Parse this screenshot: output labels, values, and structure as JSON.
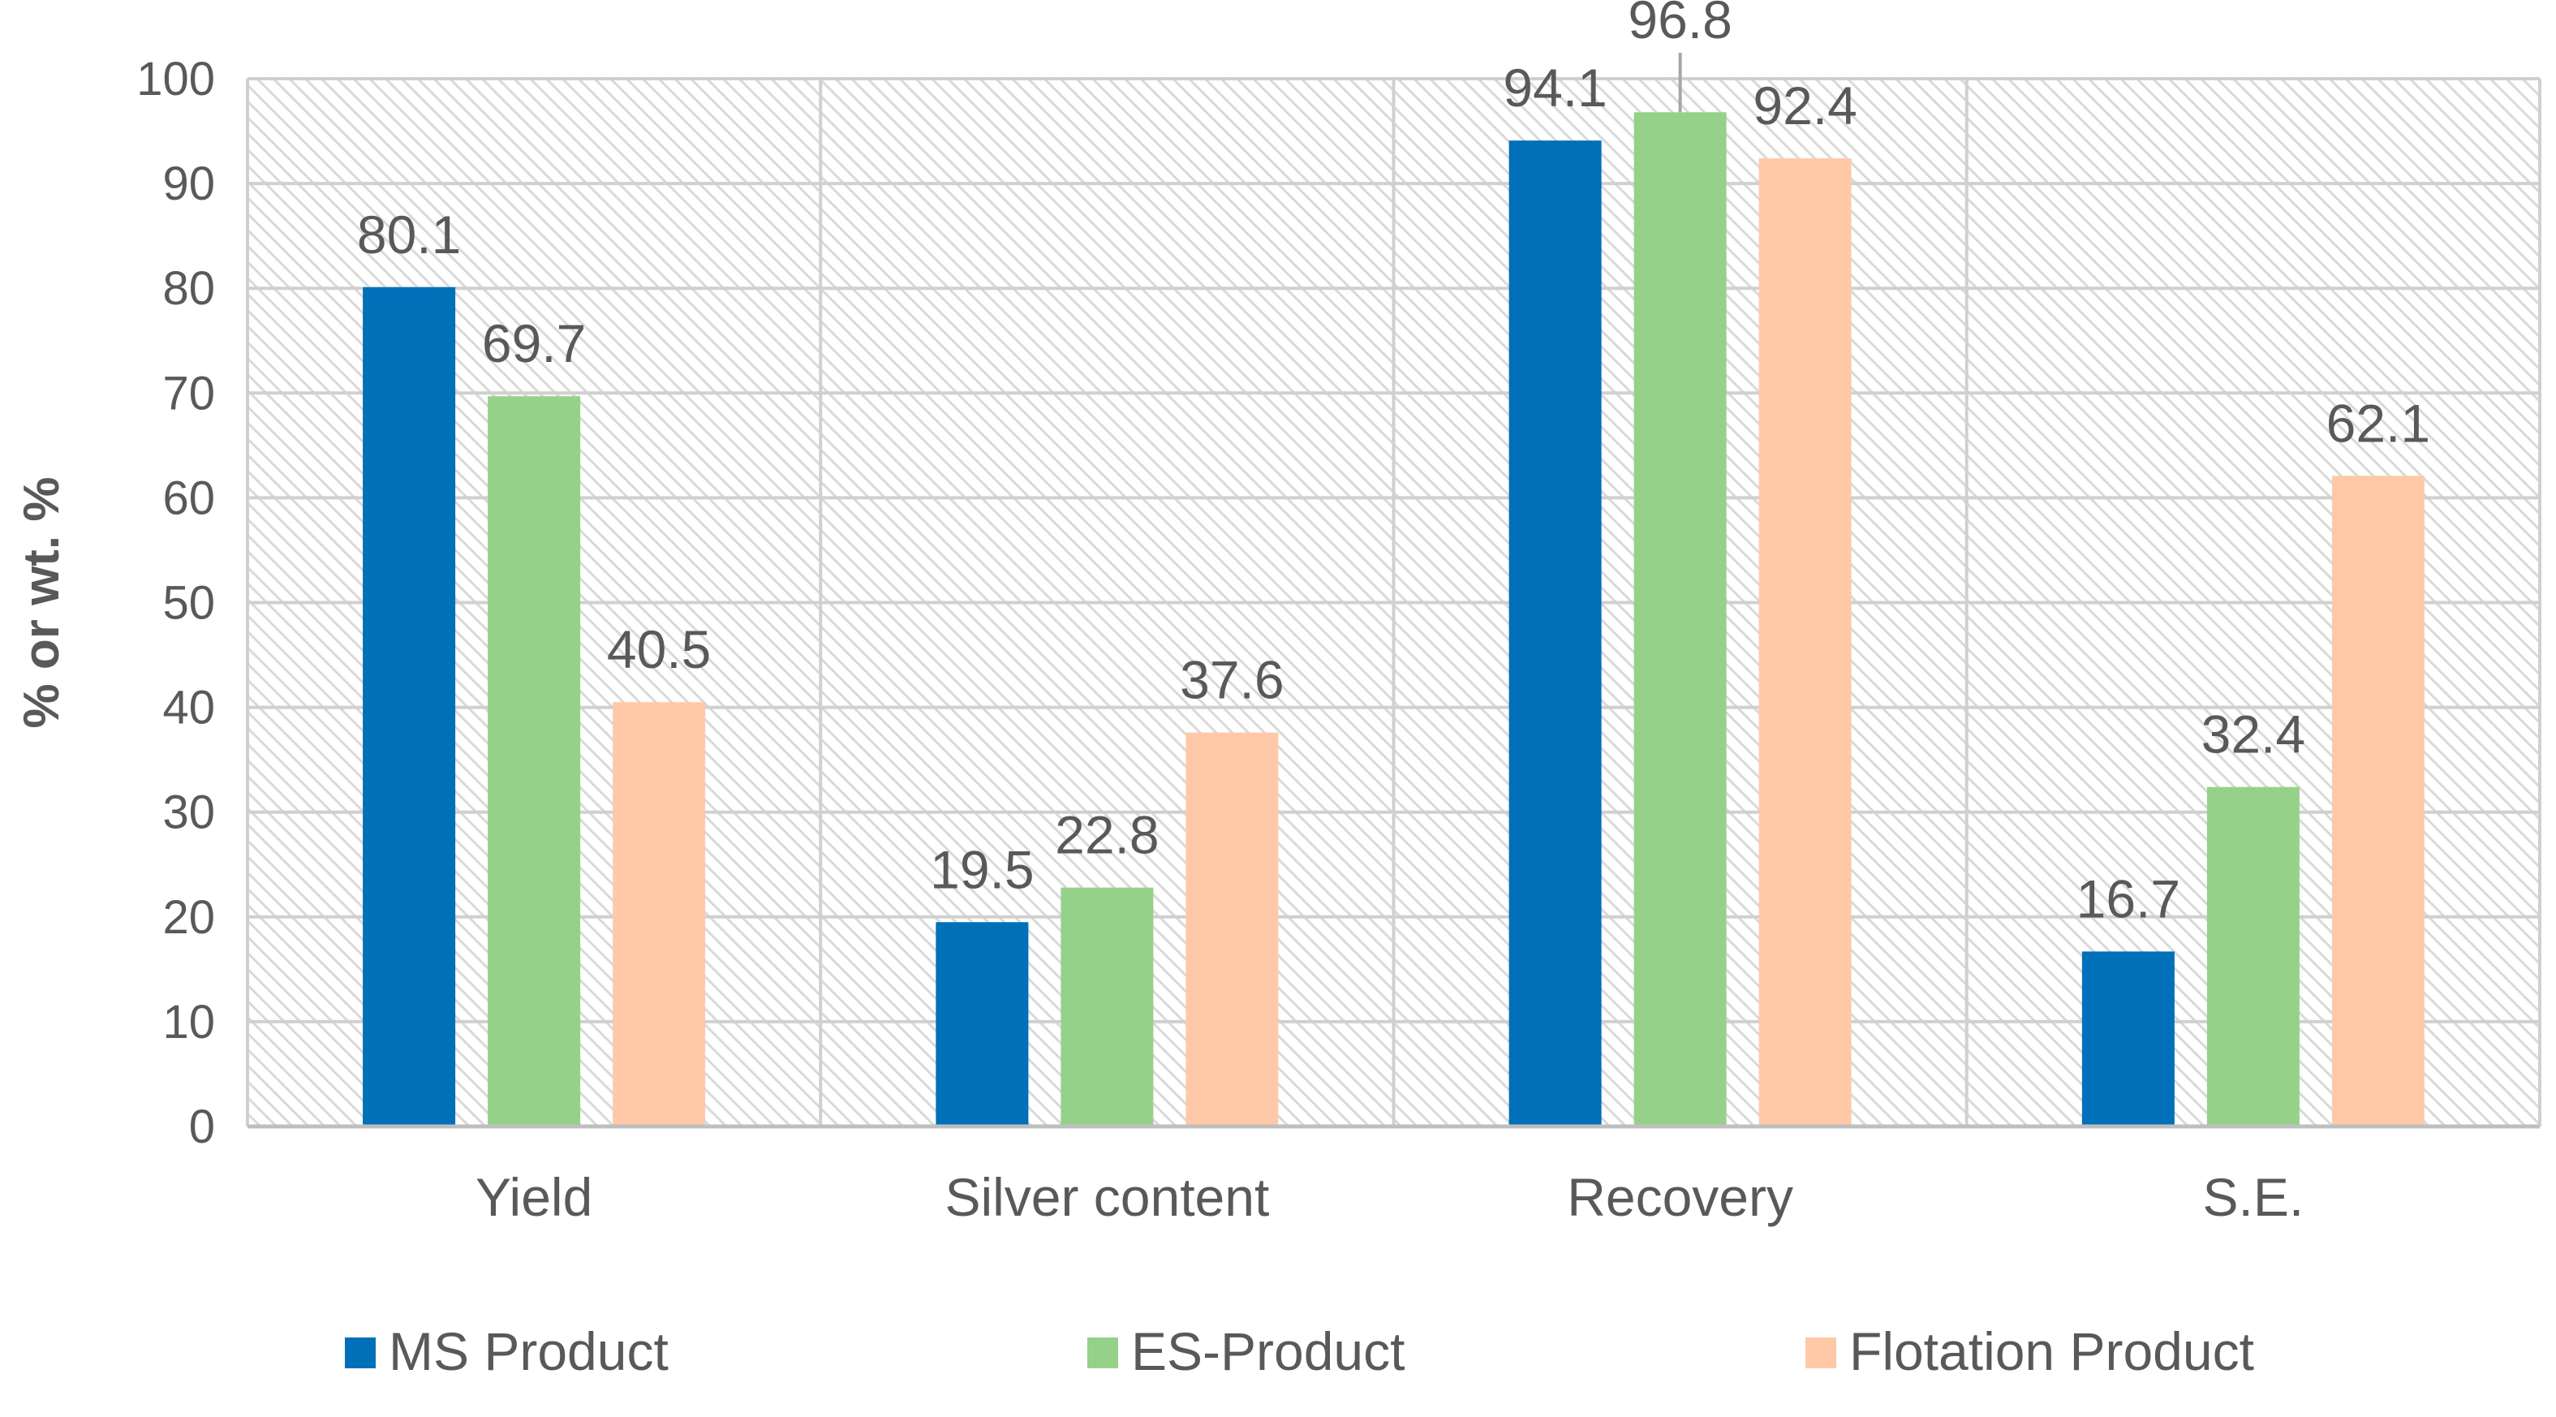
{
  "chart_data": {
    "type": "bar",
    "title": "",
    "xlabel": "",
    "ylabel": "% or wt. %",
    "ylim": [
      0,
      100
    ],
    "yticks": [
      0,
      10,
      20,
      30,
      40,
      50,
      60,
      70,
      80,
      90,
      100
    ],
    "grid": true,
    "legend_position": "bottom",
    "categories": [
      "Yield",
      "Silver content",
      "Recovery",
      "S.E."
    ],
    "series": [
      {
        "name": "MS Product",
        "color": "#0070B8",
        "values": [
          80.1,
          19.5,
          94.1,
          16.7
        ]
      },
      {
        "name": "ES-Product",
        "color": "#96D18A",
        "values": [
          69.7,
          22.8,
          96.8,
          32.4
        ]
      },
      {
        "name": "Flotation Product",
        "color": "#FFC9A8",
        "values": [
          40.5,
          37.6,
          92.4,
          62.1
        ]
      }
    ],
    "data_labels": [
      [
        "80.1",
        "19.5",
        "94.1",
        "16.7"
      ],
      [
        "69.7",
        "22.8",
        "96.8",
        "32.4"
      ],
      [
        "40.5",
        "37.6",
        "92.4",
        "62.1"
      ]
    ],
    "tick_labels": [
      "0",
      "10",
      "20",
      "30",
      "40",
      "50",
      "60",
      "70",
      "80",
      "90",
      "100"
    ]
  }
}
